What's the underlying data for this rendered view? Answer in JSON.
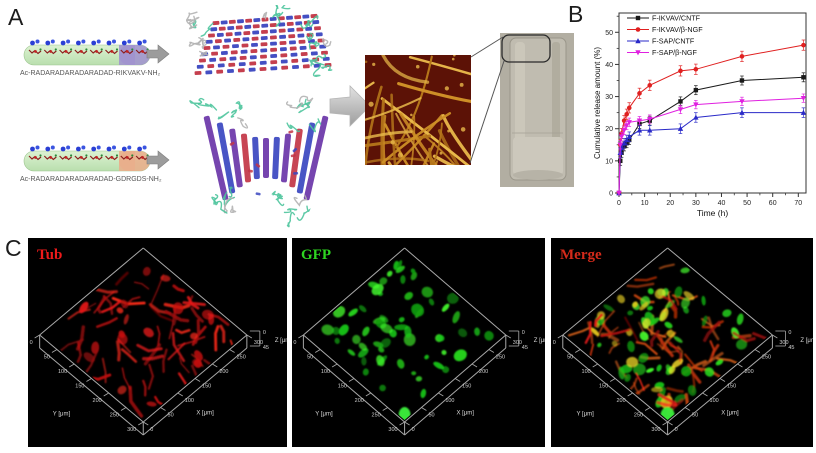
{
  "labels": {
    "a": "A",
    "b": "B",
    "c": "C"
  },
  "panel_a": {
    "peptide_1_sequence": "Ac-RADARADARADARADAD-RIKVAKV-NH₂",
    "peptide_2_sequence": "Ac-RADARADARADARADAD-GDRGDS-NH₂",
    "colors": {
      "cylinder_body": "#b9dfae",
      "peptide_1_tail": "#a193ce",
      "peptide_2_tail": "#e9ae8b",
      "mesh_red": "#c23545",
      "mesh_blue": "#3a46c0",
      "mesh_purple": "#6a35a8",
      "ribbon_teal": "#4cc49c",
      "ribbon_gray": "#b3b3b3",
      "afm_background": "#5c1206",
      "afm_fiber": "#cf9127",
      "photo_background": "#b2aea2"
    }
  },
  "chart_data": {
    "type": "line",
    "title": "",
    "xlabel": "Time (h)",
    "ylabel": "Cumulative release amount (%)",
    "xlim": [
      0,
      73
    ],
    "ylim": [
      0,
      56
    ],
    "xticks": [
      0,
      10,
      20,
      30,
      40,
      50,
      60,
      70
    ],
    "yticks": [
      0,
      10,
      20,
      30,
      40,
      50
    ],
    "grid": false,
    "legend_position": "top-left",
    "x": [
      0,
      0.5,
      1,
      2,
      3,
      4,
      8,
      12,
      24,
      30,
      48,
      72
    ],
    "series": [
      {
        "name": "F-IKVAV/CNTF",
        "color": "#1a1a1a",
        "marker": "square",
        "values": [
          0,
          10,
          12.5,
          14.5,
          15.5,
          16.5,
          21.5,
          22.5,
          28.5,
          32,
          35,
          36
        ],
        "error": 1.4
      },
      {
        "name": "F-IKVAV/β-NGF",
        "color": "#e02020",
        "marker": "circle",
        "values": [
          0,
          15,
          18.5,
          22.5,
          24.5,
          26.5,
          31,
          33.5,
          38,
          38.5,
          42.5,
          46
        ],
        "error": 1.6
      },
      {
        "name": "F-SAP/CNTF",
        "color": "#2a2ac8",
        "marker": "triangle-up",
        "values": [
          0,
          12.5,
          14,
          15.5,
          16.5,
          17.5,
          19.5,
          19.5,
          20,
          23.5,
          25,
          25
        ],
        "error": 1.5
      },
      {
        "name": "F-SAP/β-NGF",
        "color": "#e020e0",
        "marker": "triangle-down",
        "values": [
          0,
          15,
          17.5,
          19.5,
          21,
          22,
          22.5,
          23,
          26,
          27.5,
          28.5,
          29.5
        ],
        "error": 1.3
      }
    ]
  },
  "panel_c": {
    "axis": {
      "x_label": "X [μm]",
      "y_label": "Y [μm]",
      "z_label": "Z [μm]",
      "xy_ticks": [
        "0",
        "50",
        "100",
        "150",
        "200",
        "250",
        "300"
      ],
      "z_ticks": [
        "0",
        "45"
      ]
    },
    "subpanels": [
      {
        "title": "Tub",
        "title_color": "#ee1a1a",
        "channels": [
          "red"
        ]
      },
      {
        "title": "GFP",
        "title_color": "#2ed621",
        "channels": [
          "green"
        ]
      },
      {
        "title": "Merge",
        "title_color": "#d42a1a",
        "channels": [
          "red",
          "green",
          "yellow"
        ]
      }
    ]
  }
}
